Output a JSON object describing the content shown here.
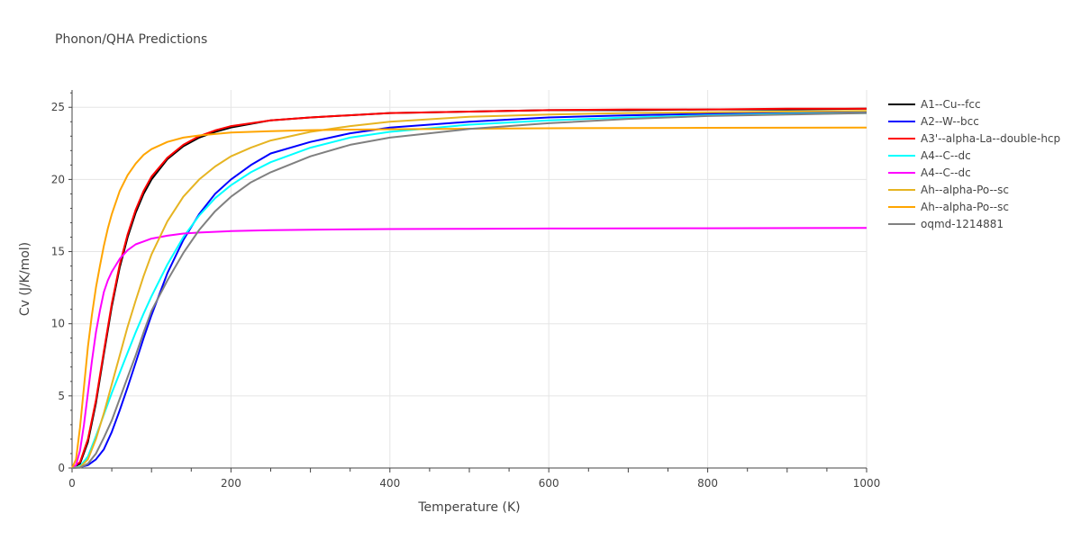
{
  "chart_data": {
    "type": "line",
    "title": "Phonon/QHA Predictions",
    "xlabel": "Temperature (K)",
    "ylabel": "Cv (J/K/mol)",
    "xlim": [
      0,
      1000
    ],
    "ylim": [
      0,
      26.2
    ],
    "x_ticks": [
      0,
      200,
      400,
      600,
      800,
      1000
    ],
    "y_ticks": [
      0,
      5,
      10,
      15,
      20,
      25
    ],
    "grid": true,
    "legend_position": "right",
    "series": [
      {
        "name": "A1--Cu--fcc",
        "color": "#000000",
        "x": [
          0,
          10,
          20,
          30,
          40,
          50,
          60,
          70,
          80,
          90,
          100,
          120,
          140,
          160,
          180,
          200,
          250,
          300,
          400,
          500,
          600,
          700,
          800,
          900,
          1000
        ],
        "y": [
          0,
          0.3,
          1.8,
          4.5,
          7.9,
          11.2,
          13.9,
          16.0,
          17.7,
          19.0,
          20.0,
          21.4,
          22.3,
          22.9,
          23.3,
          23.6,
          24.1,
          24.3,
          24.6,
          24.7,
          24.8,
          24.8,
          24.85,
          24.85,
          24.9
        ]
      },
      {
        "name": "A2--W--bcc",
        "color": "#0000ff",
        "x": [
          0,
          10,
          20,
          30,
          40,
          50,
          60,
          70,
          80,
          90,
          100,
          120,
          140,
          160,
          180,
          200,
          225,
          250,
          300,
          350,
          400,
          500,
          600,
          700,
          800,
          900,
          1000
        ],
        "y": [
          0,
          0.05,
          0.2,
          0.6,
          1.3,
          2.5,
          4.0,
          5.6,
          7.3,
          9.0,
          10.6,
          13.5,
          15.8,
          17.6,
          19.0,
          20.0,
          21.0,
          21.8,
          22.6,
          23.2,
          23.6,
          24.0,
          24.3,
          24.45,
          24.55,
          24.6,
          24.7
        ]
      },
      {
        "name": "A3'--alpha-La--double-hcp",
        "color": "#ff0000",
        "x": [
          0,
          10,
          20,
          30,
          40,
          50,
          60,
          70,
          80,
          90,
          100,
          120,
          140,
          160,
          180,
          200,
          250,
          300,
          400,
          500,
          600,
          700,
          800,
          900,
          1000
        ],
        "y": [
          0,
          0.4,
          2.0,
          4.7,
          8.1,
          11.4,
          14.1,
          16.2,
          17.9,
          19.2,
          20.2,
          21.5,
          22.4,
          23.0,
          23.4,
          23.7,
          24.1,
          24.3,
          24.6,
          24.7,
          24.8,
          24.85,
          24.85,
          24.9,
          24.9
        ]
      },
      {
        "name": "A4--C--dc",
        "color": "#00ffff",
        "x": [
          0,
          10,
          20,
          30,
          40,
          50,
          60,
          70,
          80,
          90,
          100,
          120,
          140,
          160,
          180,
          200,
          225,
          250,
          300,
          350,
          400,
          500,
          600,
          700,
          800,
          900,
          1000
        ],
        "y": [
          0,
          0.1,
          0.8,
          2.2,
          3.7,
          5.2,
          6.6,
          8.0,
          9.4,
          10.7,
          11.9,
          14.1,
          16.0,
          17.5,
          18.7,
          19.6,
          20.5,
          21.2,
          22.2,
          22.9,
          23.3,
          23.8,
          24.1,
          24.3,
          24.45,
          24.55,
          24.6
        ]
      },
      {
        "name": "A4--C--dc",
        "color": "#ff00ff",
        "x": [
          0,
          5,
          10,
          15,
          20,
          25,
          30,
          35,
          40,
          45,
          50,
          60,
          70,
          80,
          90,
          100,
          120,
          140,
          160,
          200,
          250,
          300,
          400,
          500,
          600,
          800,
          1000
        ],
        "y": [
          0,
          0.2,
          1.2,
          3.0,
          5.2,
          7.4,
          9.4,
          10.9,
          12.2,
          13.0,
          13.6,
          14.5,
          15.1,
          15.5,
          15.7,
          15.9,
          16.1,
          16.25,
          16.32,
          16.42,
          16.48,
          16.52,
          16.56,
          16.58,
          16.6,
          16.62,
          16.64
        ]
      },
      {
        "name": "Ah--alpha-Po--sc",
        "color": "#e6b422",
        "x": [
          0,
          10,
          20,
          30,
          40,
          50,
          60,
          70,
          80,
          90,
          100,
          120,
          140,
          160,
          180,
          200,
          225,
          250,
          300,
          350,
          400,
          500,
          600,
          700,
          800,
          900,
          1000
        ],
        "y": [
          0,
          0.05,
          0.6,
          2.0,
          3.8,
          5.8,
          7.8,
          9.8,
          11.6,
          13.3,
          14.8,
          17.1,
          18.8,
          20.0,
          20.9,
          21.6,
          22.2,
          22.7,
          23.3,
          23.7,
          24.0,
          24.35,
          24.5,
          24.6,
          24.65,
          24.7,
          24.75
        ]
      },
      {
        "name": "Ah--alpha-Po--sc",
        "color": "#ffa500",
        "x": [
          0,
          5,
          10,
          15,
          20,
          25,
          30,
          35,
          40,
          45,
          50,
          60,
          70,
          80,
          90,
          100,
          120,
          140,
          160,
          200,
          250,
          300,
          400,
          500,
          600,
          800,
          1000
        ],
        "y": [
          0,
          0.6,
          2.8,
          5.6,
          8.4,
          10.6,
          12.5,
          14.0,
          15.4,
          16.6,
          17.6,
          19.2,
          20.3,
          21.1,
          21.7,
          22.1,
          22.6,
          22.9,
          23.05,
          23.25,
          23.35,
          23.42,
          23.48,
          23.52,
          23.55,
          23.58,
          23.6
        ]
      },
      {
        "name": "oqmd-1214881",
        "color": "#808080",
        "x": [
          0,
          10,
          20,
          30,
          40,
          50,
          60,
          70,
          80,
          90,
          100,
          120,
          140,
          160,
          180,
          200,
          225,
          250,
          300,
          350,
          400,
          500,
          600,
          700,
          800,
          900,
          1000
        ],
        "y": [
          0,
          0.02,
          0.3,
          1.0,
          2.1,
          3.3,
          4.8,
          6.3,
          7.8,
          9.4,
          10.9,
          13.0,
          14.9,
          16.5,
          17.8,
          18.8,
          19.8,
          20.5,
          21.6,
          22.4,
          22.9,
          23.5,
          23.9,
          24.2,
          24.4,
          24.5,
          24.6
        ]
      }
    ]
  }
}
